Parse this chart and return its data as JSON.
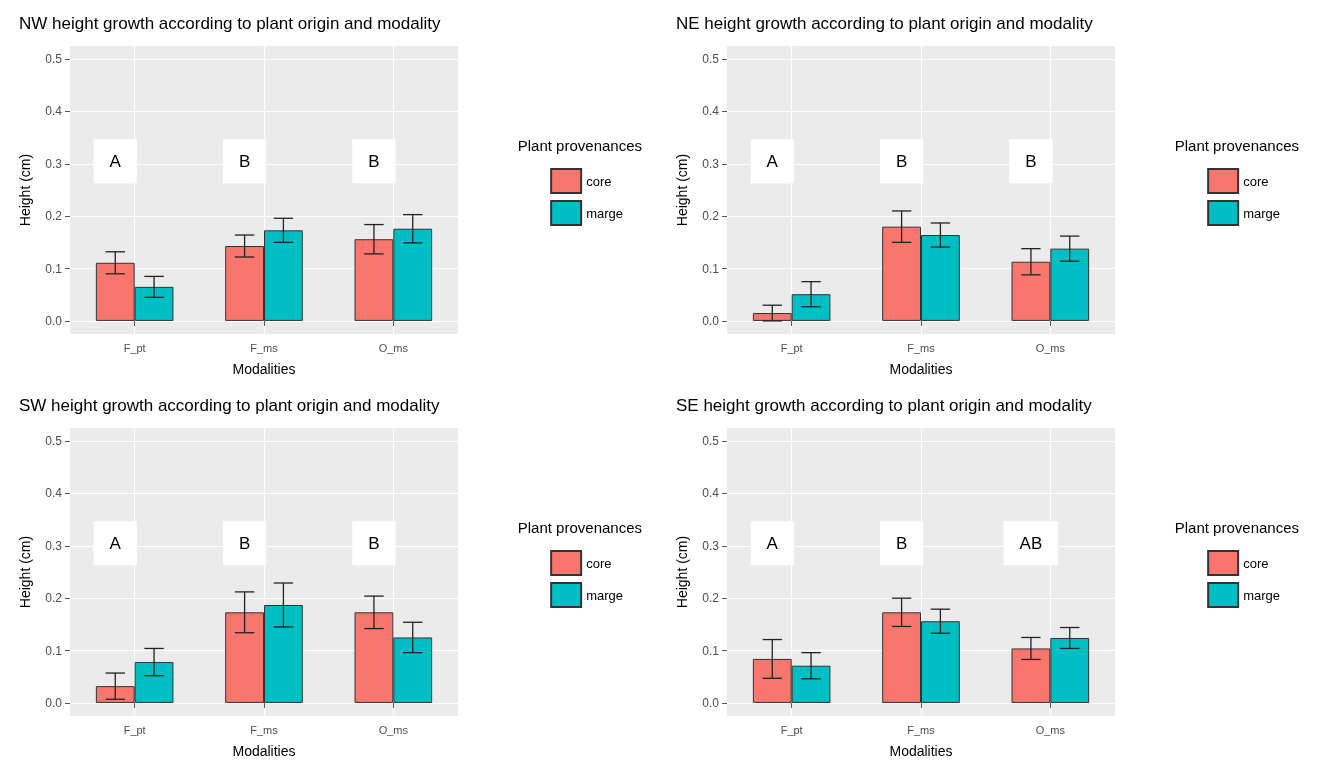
{
  "chart_data": [
    {
      "type": "bar",
      "title": "NW height growth according to plant origin and modality",
      "xlabel": "Modalities",
      "ylabel": "Height (cm)",
      "legend_title": "Plant provenances",
      "categories": [
        "F_pt",
        "F_ms",
        "O_ms"
      ],
      "series": [
        {
          "name": "core",
          "color": "#f8766d",
          "values": [
            0.111,
            0.143,
            0.156
          ],
          "errors": [
            0.021,
            0.021,
            0.028
          ]
        },
        {
          "name": "marge",
          "color": "#00bfc4",
          "values": [
            0.065,
            0.173,
            0.176
          ],
          "errors": [
            0.02,
            0.023,
            0.027
          ]
        }
      ],
      "ylim": [
        -0.025,
        0.525
      ],
      "yticks": [
        {
          "value": 0,
          "label": "0.0"
        },
        {
          "value": 0.1,
          "label": "0.1"
        },
        {
          "value": 0.2,
          "label": "0.2"
        },
        {
          "value": 0.3,
          "label": "0.3"
        },
        {
          "value": 0.4,
          "label": "0.4"
        },
        {
          "value": 0.5,
          "label": "0.5"
        }
      ],
      "grid": true,
      "legend": "right",
      "annotations": [
        "A",
        "B",
        "B"
      ]
    },
    {
      "type": "bar",
      "title": "NE height growth according to plant origin and modality",
      "xlabel": "Modalities",
      "ylabel": "Height (cm)",
      "legend_title": "Plant provenances",
      "categories": [
        "F_pt",
        "F_ms",
        "O_ms"
      ],
      "series": [
        {
          "name": "core",
          "color": "#f8766d",
          "values": [
            0.015,
            0.18,
            0.113
          ],
          "errors": [
            0.015,
            0.03,
            0.025
          ]
        },
        {
          "name": "marge",
          "color": "#00bfc4",
          "values": [
            0.051,
            0.164,
            0.138
          ],
          "errors": [
            0.024,
            0.023,
            0.024
          ]
        }
      ],
      "ylim": [
        -0.025,
        0.525
      ],
      "yticks": [
        {
          "value": 0,
          "label": "0.0"
        },
        {
          "value": 0.1,
          "label": "0.1"
        },
        {
          "value": 0.2,
          "label": "0.2"
        },
        {
          "value": 0.3,
          "label": "0.3"
        },
        {
          "value": 0.4,
          "label": "0.4"
        },
        {
          "value": 0.5,
          "label": "0.5"
        }
      ],
      "grid": true,
      "legend": "right",
      "annotations": [
        "A",
        "B",
        "B"
      ]
    },
    {
      "type": "bar",
      "title": "SW height growth according to plant origin and modality",
      "xlabel": "Modalities",
      "ylabel": "Height (cm)",
      "legend_title": "Plant provenances",
      "categories": [
        "F_pt",
        "F_ms",
        "O_ms"
      ],
      "series": [
        {
          "name": "core",
          "color": "#f8766d",
          "values": [
            0.032,
            0.173,
            0.173
          ],
          "errors": [
            0.025,
            0.039,
            0.031
          ]
        },
        {
          "name": "marge",
          "color": "#00bfc4",
          "values": [
            0.078,
            0.187,
            0.125
          ],
          "errors": [
            0.026,
            0.042,
            0.029
          ]
        }
      ],
      "ylim": [
        -0.025,
        0.525
      ],
      "yticks": [
        {
          "value": 0,
          "label": "0.0"
        },
        {
          "value": 0.1,
          "label": "0.1"
        },
        {
          "value": 0.2,
          "label": "0.2"
        },
        {
          "value": 0.3,
          "label": "0.3"
        },
        {
          "value": 0.4,
          "label": "0.4"
        },
        {
          "value": 0.5,
          "label": "0.5"
        }
      ],
      "grid": true,
      "legend": "right",
      "annotations": [
        "A",
        "B",
        "B"
      ]
    },
    {
      "type": "bar",
      "title": "SE height growth according to plant origin and modality",
      "xlabel": "Modalities",
      "ylabel": "Height (cm)",
      "legend_title": "Plant provenances",
      "categories": [
        "F_pt",
        "F_ms",
        "O_ms"
      ],
      "series": [
        {
          "name": "core",
          "color": "#f8766d",
          "values": [
            0.084,
            0.173,
            0.104
          ],
          "errors": [
            0.037,
            0.027,
            0.021
          ]
        },
        {
          "name": "marge",
          "color": "#00bfc4",
          "values": [
            0.071,
            0.156,
            0.124
          ],
          "errors": [
            0.025,
            0.023,
            0.02
          ]
        }
      ],
      "ylim": [
        -0.025,
        0.525
      ],
      "yticks": [
        {
          "value": 0,
          "label": "0.0"
        },
        {
          "value": 0.1,
          "label": "0.1"
        },
        {
          "value": 0.2,
          "label": "0.2"
        },
        {
          "value": 0.3,
          "label": "0.3"
        },
        {
          "value": 0.4,
          "label": "0.4"
        },
        {
          "value": 0.5,
          "label": "0.5"
        }
      ],
      "grid": true,
      "legend": "right",
      "annotations": [
        "A",
        "B",
        "AB"
      ]
    }
  ]
}
